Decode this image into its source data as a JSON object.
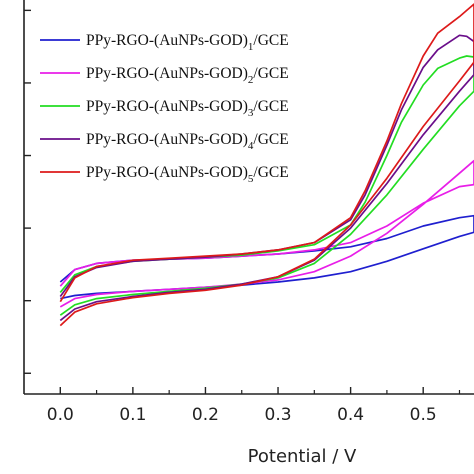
{
  "chart_data": {
    "type": "line",
    "title": "",
    "xlabel": "Potential / V",
    "ylabel": "",
    "xlim": [
      -0.05,
      0.57
    ],
    "ylim": [
      -6,
      32
    ],
    "x_ticks": [
      {
        "value": 0.0,
        "label": "0.0"
      },
      {
        "value": 0.1,
        "label": "0.1"
      },
      {
        "value": 0.2,
        "label": "0.2"
      },
      {
        "value": 0.3,
        "label": "0.3"
      },
      {
        "value": 0.4,
        "label": "0.4"
      },
      {
        "value": 0.5,
        "label": "0.5"
      }
    ],
    "y_ticks": [
      -4,
      3,
      10,
      17,
      24,
      31
    ],
    "legend_position": "top-left",
    "series": [
      {
        "name_parts": [
          "PPy-RGO-(AuNPs-GOD)",
          "1",
          "/GCE"
        ],
        "color": "#1f1fcf",
        "forward": [
          [
            0.0,
            3.2
          ],
          [
            0.02,
            3.5
          ],
          [
            0.05,
            3.7
          ],
          [
            0.1,
            3.9
          ],
          [
            0.15,
            4.1
          ],
          [
            0.2,
            4.3
          ],
          [
            0.25,
            4.5
          ],
          [
            0.3,
            4.8
          ],
          [
            0.35,
            5.2
          ],
          [
            0.4,
            5.8
          ],
          [
            0.45,
            6.8
          ],
          [
            0.5,
            8.0
          ],
          [
            0.55,
            9.2
          ],
          [
            0.57,
            9.6
          ]
        ],
        "reverse": [
          [
            0.57,
            11.2
          ],
          [
            0.55,
            11.0
          ],
          [
            0.5,
            10.2
          ],
          [
            0.45,
            9.0
          ],
          [
            0.4,
            8.2
          ],
          [
            0.35,
            7.8
          ],
          [
            0.3,
            7.5
          ],
          [
            0.25,
            7.3
          ],
          [
            0.2,
            7.1
          ],
          [
            0.15,
            7.0
          ],
          [
            0.1,
            6.9
          ],
          [
            0.05,
            6.6
          ],
          [
            0.02,
            6.0
          ],
          [
            0.0,
            4.8
          ]
        ]
      },
      {
        "name_parts": [
          "PPy-RGO-(AuNPs-GOD)",
          "2",
          "/GCE"
        ],
        "color": "#e81ee8",
        "forward": [
          [
            0.0,
            2.4
          ],
          [
            0.02,
            3.2
          ],
          [
            0.05,
            3.6
          ],
          [
            0.1,
            3.9
          ],
          [
            0.15,
            4.1
          ],
          [
            0.2,
            4.3
          ],
          [
            0.25,
            4.6
          ],
          [
            0.3,
            5.0
          ],
          [
            0.35,
            5.8
          ],
          [
            0.4,
            7.3
          ],
          [
            0.45,
            9.5
          ],
          [
            0.5,
            12.3
          ],
          [
            0.55,
            15.3
          ],
          [
            0.57,
            16.5
          ]
        ],
        "reverse": [
          [
            0.57,
            14.2
          ],
          [
            0.55,
            14.0
          ],
          [
            0.5,
            12.4
          ],
          [
            0.45,
            10.2
          ],
          [
            0.4,
            8.6
          ],
          [
            0.35,
            7.9
          ],
          [
            0.3,
            7.5
          ],
          [
            0.25,
            7.3
          ],
          [
            0.2,
            7.1
          ],
          [
            0.15,
            7.0
          ],
          [
            0.1,
            6.9
          ],
          [
            0.05,
            6.6
          ],
          [
            0.02,
            6.0
          ],
          [
            0.0,
            4.4
          ]
        ]
      },
      {
        "name_parts": [
          "PPy-RGO-(AuNPs-GOD)",
          "3",
          "/GCE"
        ],
        "color": "#22dd22",
        "forward": [
          [
            0.0,
            1.6
          ],
          [
            0.02,
            2.6
          ],
          [
            0.05,
            3.2
          ],
          [
            0.1,
            3.6
          ],
          [
            0.15,
            3.9
          ],
          [
            0.2,
            4.2
          ],
          [
            0.25,
            4.6
          ],
          [
            0.3,
            5.2
          ],
          [
            0.35,
            6.6
          ],
          [
            0.4,
            9.4
          ],
          [
            0.45,
            13.2
          ],
          [
            0.5,
            17.6
          ],
          [
            0.55,
            21.8
          ],
          [
            0.57,
            23.2
          ]
        ],
        "reverse": [
          [
            0.57,
            26.5
          ],
          [
            0.56,
            26.6
          ],
          [
            0.55,
            26.4
          ],
          [
            0.52,
            25.4
          ],
          [
            0.5,
            23.8
          ],
          [
            0.47,
            20.2
          ],
          [
            0.45,
            17.0
          ],
          [
            0.42,
            12.5
          ],
          [
            0.4,
            10.3
          ],
          [
            0.35,
            8.4
          ],
          [
            0.3,
            7.8
          ],
          [
            0.25,
            7.4
          ],
          [
            0.2,
            7.2
          ],
          [
            0.15,
            7.0
          ],
          [
            0.1,
            6.8
          ],
          [
            0.05,
            6.3
          ],
          [
            0.02,
            5.5
          ],
          [
            0.0,
            3.8
          ]
        ]
      },
      {
        "name_parts": [
          "PPy-RGO-(AuNPs-GOD)",
          "4",
          "/GCE"
        ],
        "color": "#6a0e8a",
        "forward": [
          [
            0.0,
            1.1
          ],
          [
            0.02,
            2.2
          ],
          [
            0.05,
            2.9
          ],
          [
            0.1,
            3.4
          ],
          [
            0.15,
            3.8
          ],
          [
            0.2,
            4.1
          ],
          [
            0.25,
            4.6
          ],
          [
            0.3,
            5.3
          ],
          [
            0.35,
            6.9
          ],
          [
            0.4,
            10.0
          ],
          [
            0.45,
            14.3
          ],
          [
            0.5,
            19.0
          ],
          [
            0.55,
            23.2
          ],
          [
            0.57,
            24.8
          ]
        ],
        "reverse": [
          [
            0.57,
            28.0
          ],
          [
            0.56,
            28.5
          ],
          [
            0.55,
            28.6
          ],
          [
            0.52,
            27.2
          ],
          [
            0.5,
            25.5
          ],
          [
            0.47,
            21.4
          ],
          [
            0.45,
            18.0
          ],
          [
            0.42,
            13.2
          ],
          [
            0.4,
            10.8
          ],
          [
            0.35,
            8.6
          ],
          [
            0.3,
            7.9
          ],
          [
            0.25,
            7.5
          ],
          [
            0.2,
            7.2
          ],
          [
            0.15,
            7.0
          ],
          [
            0.1,
            6.8
          ],
          [
            0.05,
            6.2
          ],
          [
            0.02,
            5.3
          ],
          [
            0.0,
            3.4
          ]
        ]
      },
      {
        "name_parts": [
          "PPy-RGO-(AuNPs-GOD)",
          "5",
          "/GCE"
        ],
        "color": "#dd1a1a",
        "forward": [
          [
            0.0,
            0.6
          ],
          [
            0.02,
            1.9
          ],
          [
            0.05,
            2.7
          ],
          [
            0.1,
            3.3
          ],
          [
            0.15,
            3.7
          ],
          [
            0.2,
            4.0
          ],
          [
            0.25,
            4.5
          ],
          [
            0.3,
            5.3
          ],
          [
            0.35,
            7.0
          ],
          [
            0.4,
            10.3
          ],
          [
            0.45,
            14.8
          ],
          [
            0.5,
            19.8
          ],
          [
            0.55,
            24.2
          ],
          [
            0.57,
            26.0
          ]
        ],
        "reverse": [
          [
            0.57,
            31.6
          ],
          [
            0.56,
            31.0
          ],
          [
            0.55,
            30.4
          ],
          [
            0.52,
            28.8
          ],
          [
            0.5,
            26.6
          ],
          [
            0.47,
            22.0
          ],
          [
            0.45,
            18.4
          ],
          [
            0.42,
            13.6
          ],
          [
            0.4,
            11.0
          ],
          [
            0.35,
            8.6
          ],
          [
            0.3,
            7.9
          ],
          [
            0.25,
            7.5
          ],
          [
            0.2,
            7.3
          ],
          [
            0.15,
            7.1
          ],
          [
            0.1,
            6.9
          ],
          [
            0.05,
            6.3
          ],
          [
            0.02,
            5.2
          ],
          [
            0.0,
            2.9
          ]
        ]
      }
    ]
  }
}
